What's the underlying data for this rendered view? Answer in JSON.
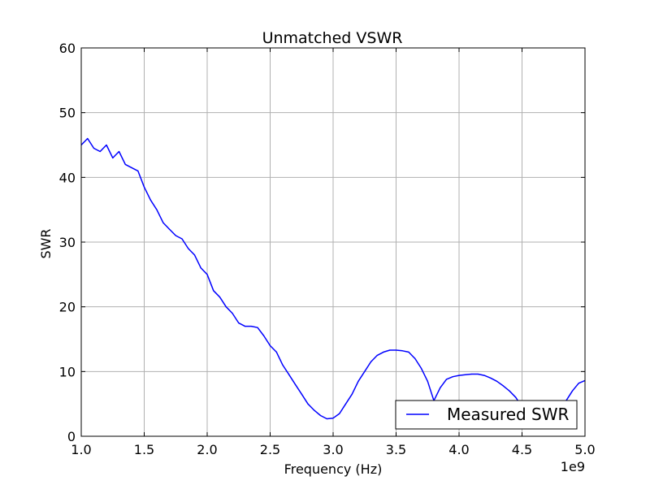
{
  "chart_data": {
    "type": "line",
    "title": "Unmatched VSWR",
    "xlabel": "Frequency (Hz)",
    "ylabel": "SWR",
    "x_offset_label": "1e9",
    "xlim": [
      1.0,
      5.0
    ],
    "ylim": [
      0,
      60
    ],
    "xticks": [
      "1.0",
      "1.5",
      "2.0",
      "2.5",
      "3.0",
      "3.5",
      "4.0",
      "4.5",
      "5.0"
    ],
    "yticks": [
      "0",
      "10",
      "20",
      "30",
      "40",
      "50",
      "60"
    ],
    "grid": true,
    "legend_position": "lower-right",
    "series": [
      {
        "name": "Measured SWR",
        "color": "#0000ff",
        "x": [
          1.0,
          1.05,
          1.1,
          1.15,
          1.2,
          1.25,
          1.3,
          1.35,
          1.4,
          1.45,
          1.5,
          1.55,
          1.6,
          1.65,
          1.7,
          1.75,
          1.8,
          1.85,
          1.9,
          1.95,
          2.0,
          2.05,
          2.1,
          2.15,
          2.2,
          2.25,
          2.3,
          2.35,
          2.4,
          2.45,
          2.5,
          2.55,
          2.6,
          2.65,
          2.7,
          2.75,
          2.8,
          2.85,
          2.9,
          2.95,
          3.0,
          3.05,
          3.1,
          3.15,
          3.2,
          3.25,
          3.3,
          3.35,
          3.4,
          3.45,
          3.5,
          3.55,
          3.6,
          3.65,
          3.7,
          3.75,
          3.8,
          3.85,
          3.9,
          3.95,
          4.0,
          4.05,
          4.1,
          4.15,
          4.2,
          4.25,
          4.3,
          4.35,
          4.4,
          4.45,
          4.5,
          4.55,
          4.6,
          4.65,
          4.7,
          4.75,
          4.8,
          4.85,
          4.9,
          4.95,
          5.0
        ],
        "values": [
          45,
          46,
          44.5,
          44,
          45,
          43,
          44,
          42,
          41.5,
          41,
          38.5,
          36.5,
          35,
          33,
          32,
          31,
          30.5,
          29,
          28,
          26,
          25,
          22.5,
          21.5,
          20,
          19,
          17.5,
          17,
          17,
          16.8,
          15.5,
          14,
          13,
          11,
          9.5,
          8,
          6.5,
          5,
          4,
          3.2,
          2.7,
          2.8,
          3.5,
          5,
          6.5,
          8.5,
          10,
          11.5,
          12.5,
          13,
          13.3,
          13.3,
          13.2,
          13,
          12,
          10.5,
          8.5,
          5.5,
          7.5,
          8.8,
          9.2,
          9.4,
          9.5,
          9.6,
          9.6,
          9.4,
          9,
          8.5,
          7.8,
          7,
          6,
          4.5,
          3.5,
          3,
          2.8,
          3,
          3.6,
          4.5,
          5.5,
          7,
          8.2,
          8.6
        ]
      }
    ]
  }
}
